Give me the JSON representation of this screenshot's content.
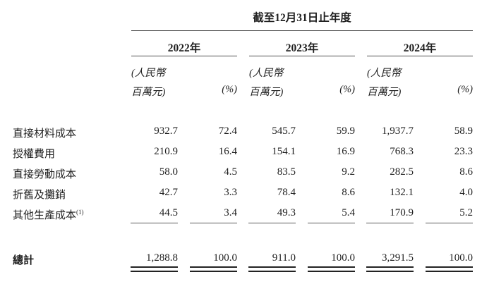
{
  "header": {
    "period_title": "截至12月31日止年度",
    "years": [
      "2022年",
      "2023年",
      "2024年"
    ],
    "unit_line1": "(人民幣",
    "unit_line2": "百萬元)",
    "pct_label": "(%)"
  },
  "table": {
    "rows": [
      {
        "label": "直接材料成本",
        "values": [
          "932.7",
          "72.4",
          "545.7",
          "59.9",
          "1,937.7",
          "58.9"
        ]
      },
      {
        "label": "授權費用",
        "values": [
          "210.9",
          "16.4",
          "154.1",
          "16.9",
          "768.3",
          "23.3"
        ]
      },
      {
        "label": "直接勞動成本",
        "values": [
          "58.0",
          "4.5",
          "83.5",
          "9.2",
          "282.5",
          "8.6"
        ]
      },
      {
        "label": "折舊及攤銷",
        "values": [
          "42.7",
          "3.3",
          "78.4",
          "8.6",
          "132.1",
          "4.0"
        ]
      },
      {
        "label": "其他生產成本",
        "footnote_ref": "(1)",
        "values": [
          "44.5",
          "3.4",
          "49.3",
          "5.4",
          "170.9",
          "5.2"
        ]
      }
    ],
    "total": {
      "label": "總計",
      "values": [
        "1,288.8",
        "100.0",
        "911.0",
        "100.0",
        "3,291.5",
        "100.0"
      ]
    }
  },
  "colors": {
    "text": "#1f1f1f",
    "rule_thin": "#5a5a5a",
    "rule_double": "#222222"
  }
}
